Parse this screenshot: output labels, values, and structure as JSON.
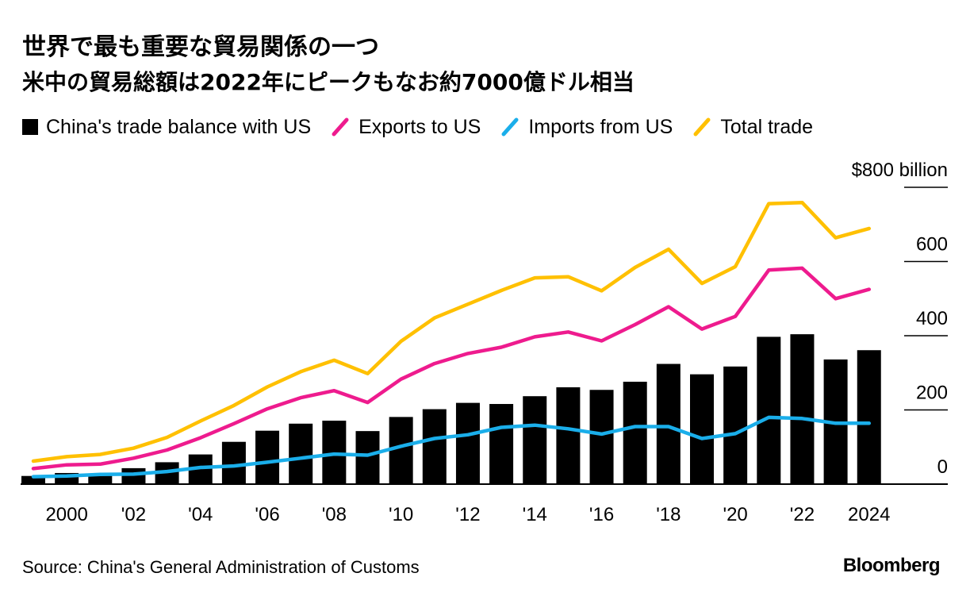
{
  "title": "世界で最も重要な貿易関係の一つ",
  "subtitle": "米中の貿易総額は2022年にピークもなお約7000億ドル相当",
  "source": "Source: China's General Administration of Customs",
  "brand": "Bloomberg",
  "colors": {
    "balance": "#000000",
    "exports": "#ee1b8e",
    "imports": "#1aaeea",
    "total": "#ffc000",
    "axis": "#000000"
  },
  "legend": [
    {
      "label": "China's trade balance with US",
      "series": "balance",
      "icon": "square-swatch"
    },
    {
      "label": "Exports to US",
      "series": "exports",
      "icon": "slash-line-swatch"
    },
    {
      "label": "Imports from US",
      "series": "imports",
      "icon": "slash-line-swatch"
    },
    {
      "label": "Total trade",
      "series": "total",
      "icon": "slash-line-swatch"
    }
  ],
  "chart_data": {
    "type": "bar+line",
    "title": "世界で最も重要な貿易関係の一つ",
    "subtitle": "米中の貿易総額は2022年にピークもなお約7000億ドル相当",
    "xlabel": "",
    "ylabel": "",
    "ylim": [
      0,
      800
    ],
    "y_ticks": [
      0,
      200,
      400,
      600,
      800
    ],
    "y_tick_labels": [
      "0",
      "200",
      "400",
      "600",
      "$800 billion"
    ],
    "y_axis_side": "right",
    "x": [
      1999,
      2000,
      2001,
      2002,
      2003,
      2004,
      2005,
      2006,
      2007,
      2008,
      2009,
      2010,
      2011,
      2012,
      2013,
      2014,
      2015,
      2016,
      2017,
      2018,
      2019,
      2020,
      2021,
      2022,
      2023,
      2024
    ],
    "x_ticks": [
      2000,
      2002,
      2004,
      2006,
      2008,
      2010,
      2012,
      2014,
      2016,
      2018,
      2020,
      2022,
      2024
    ],
    "x_tick_labels": [
      "2000",
      "'02",
      "'04",
      "'06",
      "'08",
      "'10",
      "'12",
      "'14",
      "'16",
      "'18",
      "'20",
      "'22",
      "2024"
    ],
    "series": [
      {
        "name": "China's trade balance with US",
        "key": "balance",
        "type": "bar",
        "values": [
          22,
          30,
          28,
          43,
          59,
          80,
          114,
          144,
          163,
          171,
          143,
          181,
          202,
          219,
          216,
          237,
          261,
          254,
          276,
          324,
          296,
          317,
          397,
          404,
          336,
          361
        ]
      },
      {
        "name": "Exports to US",
        "key": "exports",
        "type": "line",
        "values": [
          42,
          52,
          54,
          70,
          92,
          125,
          163,
          203,
          233,
          252,
          220,
          283,
          325,
          352,
          369,
          397,
          410,
          386,
          430,
          478,
          418,
          452,
          577,
          582,
          500,
          525
        ]
      },
      {
        "name": "Imports from US",
        "key": "imports",
        "type": "line",
        "values": [
          20,
          22,
          26,
          27,
          34,
          45,
          49,
          59,
          70,
          81,
          78,
          102,
          123,
          133,
          153,
          159,
          149,
          135,
          155,
          155,
          123,
          136,
          180,
          177,
          164,
          164
        ]
      },
      {
        "name": "Total trade",
        "key": "total",
        "type": "line",
        "values": [
          62,
          74,
          80,
          97,
          126,
          170,
          212,
          262,
          303,
          334,
          298,
          385,
          448,
          485,
          522,
          556,
          559,
          521,
          584,
          633,
          541,
          586,
          756,
          759,
          664,
          689
        ]
      }
    ],
    "legend_position": "top-left"
  }
}
